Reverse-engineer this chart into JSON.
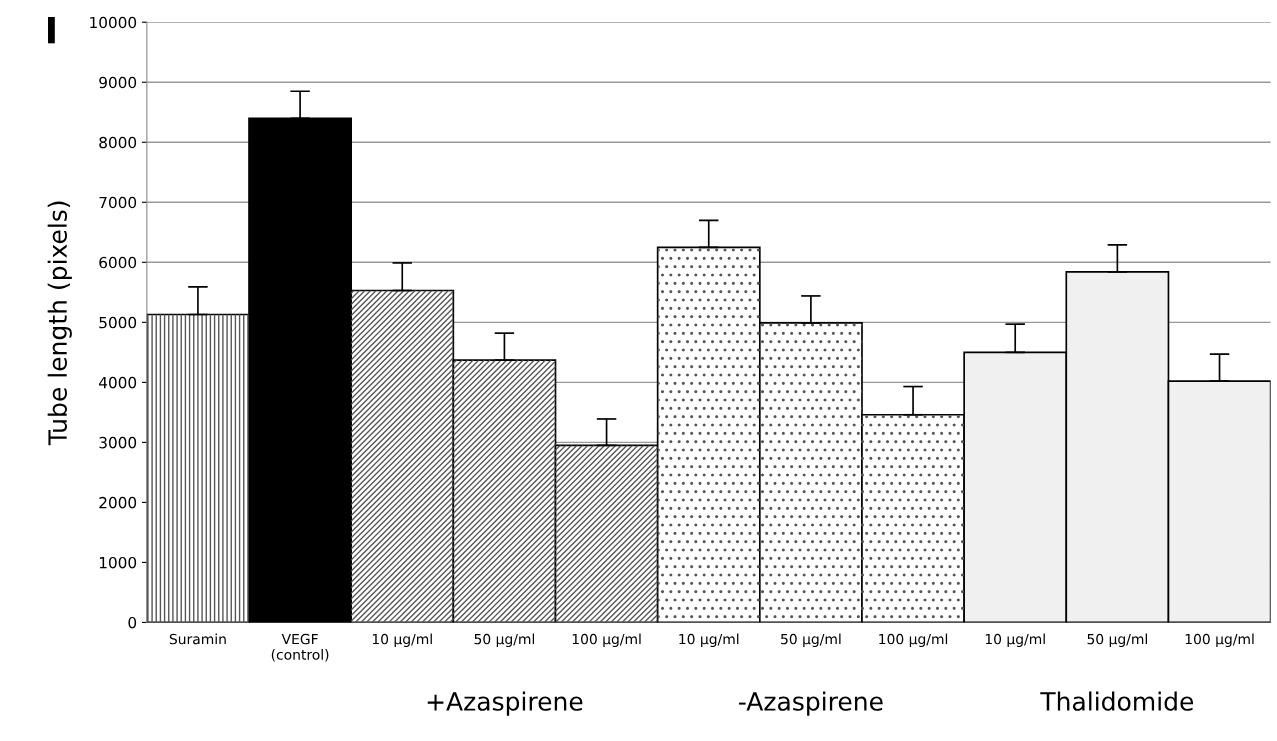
{
  "chart_data": {
    "type": "bar",
    "title": "I",
    "ylabel": "Tube length (pixels)",
    "categories": [
      "Suramin",
      "VEGF\n(control)",
      "10 µg/ml",
      "50 µg/ml",
      "100 µg/ml",
      "10 µg/ml",
      "50 µg/ml",
      "100 µg/ml",
      "10 µg/ml",
      "50 µg/ml",
      "100 µg/ml"
    ],
    "values": [
      5130,
      8400,
      5530,
      4370,
      2950,
      6250,
      4990,
      3460,
      4500,
      5840,
      4020
    ],
    "errors": [
      [
        5130,
        5590
      ],
      [
        8400,
        8850
      ],
      [
        5530,
        5990
      ],
      [
        4370,
        4820
      ],
      [
        2950,
        3390
      ],
      [
        6250,
        6700
      ],
      [
        4990,
        5440
      ],
      [
        3460,
        3930
      ],
      [
        4500,
        4970
      ],
      [
        5840,
        6290
      ],
      [
        4020,
        4470
      ]
    ],
    "colors": [
      "#ffffff",
      "#000000",
      "#ffffff",
      "#ffffff",
      "#ffffff",
      "#ffffff",
      "#ffffff",
      "#ffffff",
      "#f0f0f0",
      "#f0f0f0",
      "#f0f0f0"
    ],
    "ylim": [
      0,
      10000
    ],
    "yticks": [
      0,
      1000,
      2000,
      3000,
      4000,
      5000,
      6000,
      7000,
      8000,
      9000,
      10000
    ],
    "grid": "y",
    "legend": false,
    "annotations": [
      "+Azaspirene",
      "-Azaspirene",
      "Thalidomide"
    ]
  }
}
